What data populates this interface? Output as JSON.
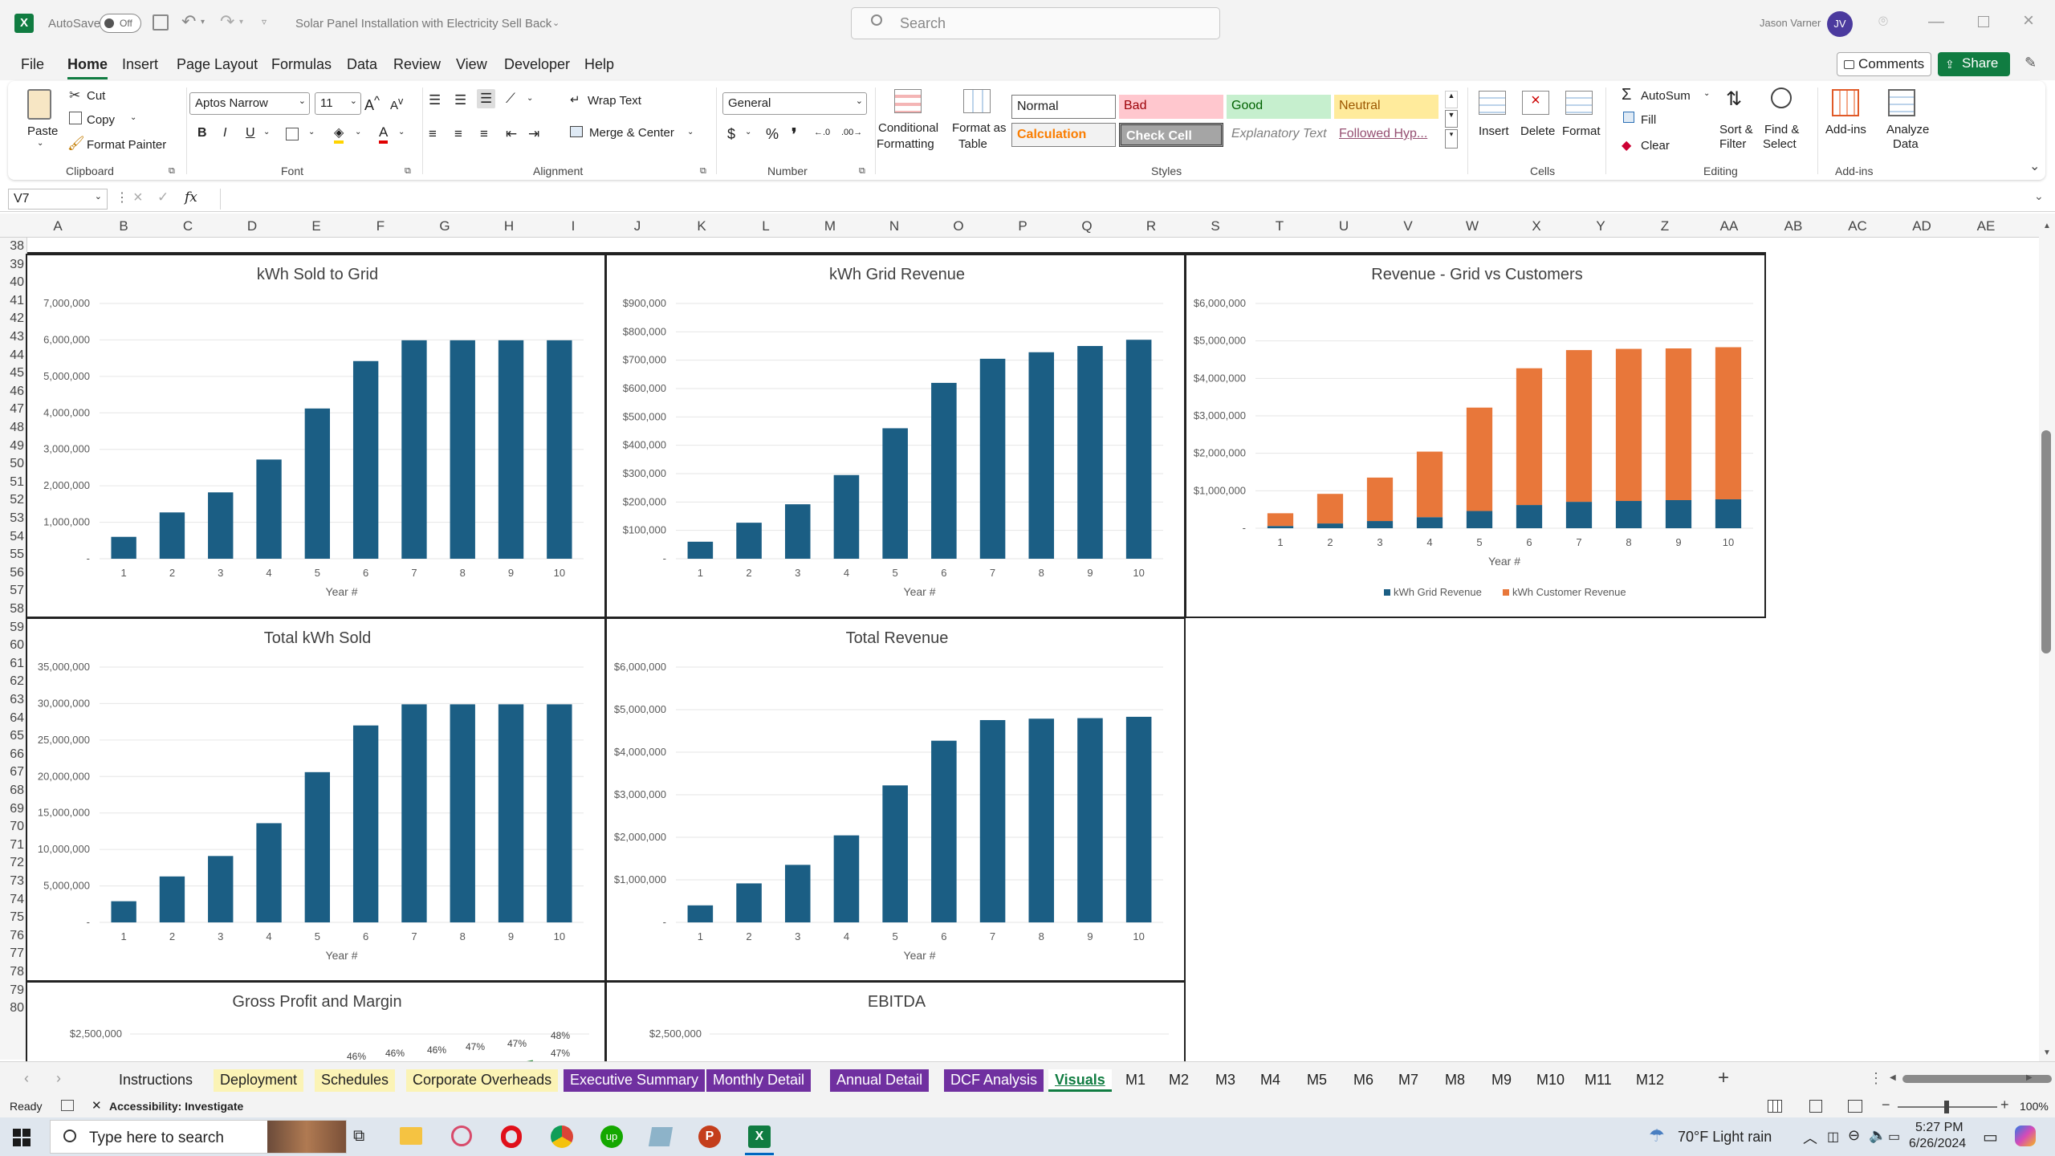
{
  "titlebar": {
    "autosave_label": "AutoSave",
    "autosave_state": "Off",
    "doc_title": "Solar Panel Installation with Electricity Sell Back",
    "search_placeholder": "Search",
    "user_name": "Jason Varner",
    "user_initials": "JV"
  },
  "menu": [
    "File",
    "Home",
    "Insert",
    "Page Layout",
    "Formulas",
    "Data",
    "Review",
    "View",
    "Developer",
    "Help"
  ],
  "menu_right": {
    "comments": "Comments",
    "share": "Share"
  },
  "ribbon": {
    "clipboard": {
      "paste": "Paste",
      "cut": "Cut",
      "copy": "Copy",
      "format_painter": "Format Painter",
      "label": "Clipboard"
    },
    "font": {
      "name": "Aptos Narrow",
      "size": "11",
      "label": "Font"
    },
    "alignment": {
      "wrap": "Wrap Text",
      "merge": "Merge & Center",
      "label": "Alignment"
    },
    "number": {
      "format": "General",
      "label": "Number"
    },
    "styles": {
      "cond": [
        "Conditional",
        "Formatting"
      ],
      "table": [
        "Format as",
        "Table"
      ],
      "cells": [
        "Normal",
        "Bad",
        "Good",
        "Neutral",
        "Calculation",
        "Check Cell",
        "Explanatory Text",
        "Followed Hyp..."
      ],
      "label": "Styles"
    },
    "cells": {
      "insert": "Insert",
      "delete": "Delete",
      "format": "Format",
      "label": "Cells"
    },
    "editing": {
      "autosum": "AutoSum",
      "fill": "Fill",
      "clear": "Clear",
      "sort": [
        "Sort &",
        "Filter"
      ],
      "find": [
        "Find &",
        "Select"
      ],
      "label": "Editing"
    },
    "addins": {
      "addins": "Add-ins",
      "analyze": [
        "Analyze",
        "Data"
      ],
      "label": "Add-ins"
    }
  },
  "formula_bar": {
    "name_box": "V7",
    "fx": "fx",
    "formula": ""
  },
  "columns": [
    "A",
    "B",
    "C",
    "D",
    "E",
    "F",
    "G",
    "H",
    "I",
    "J",
    "K",
    "L",
    "M",
    "N",
    "O",
    "P",
    "Q",
    "R",
    "S",
    "T",
    "U",
    "V",
    "W",
    "X",
    "Y",
    "Z",
    "AA",
    "AB",
    "AC",
    "AD",
    "AE"
  ],
  "rows": [
    "38",
    "39",
    "40",
    "41",
    "42",
    "43",
    "44",
    "45",
    "46",
    "47",
    "48",
    "49",
    "50",
    "51",
    "52",
    "53",
    "54",
    "55",
    "56",
    "57",
    "58",
    "59",
    "60",
    "61",
    "62",
    "63",
    "64",
    "65",
    "66",
    "67",
    "68",
    "69",
    "70",
    "71",
    "72",
    "73",
    "74",
    "75",
    "76",
    "77",
    "78",
    "79",
    "80"
  ],
  "chart_data": [
    {
      "type": "bar",
      "title": "kWh Sold to Grid",
      "xlabel": "Year #",
      "ylabel": "",
      "categories": [
        "1",
        "2",
        "3",
        "4",
        "5",
        "6",
        "7",
        "8",
        "9",
        "10"
      ],
      "values": [
        600000,
        1270000,
        1820000,
        2720000,
        4120000,
        5420000,
        5990000,
        5990000,
        5990000,
        5990000
      ],
      "ylim": [
        0,
        7000000
      ],
      "yticks": [
        "-",
        "1,000,000",
        "2,000,000",
        "3,000,000",
        "4,000,000",
        "5,000,000",
        "6,000,000",
        "7,000,000"
      ],
      "color": "#1b5e84"
    },
    {
      "type": "bar",
      "title": "kWh Grid Revenue",
      "xlabel": "Year #",
      "ylabel": "",
      "categories": [
        "1",
        "2",
        "3",
        "4",
        "5",
        "6",
        "7",
        "8",
        "9",
        "10"
      ],
      "values": [
        60000,
        127000,
        192000,
        295000,
        460000,
        620000,
        705000,
        728000,
        750000,
        772000
      ],
      "ylim": [
        0,
        900000
      ],
      "yticks": [
        "-",
        "$100,000",
        "$200,000",
        "$300,000",
        "$400,000",
        "$500,000",
        "$600,000",
        "$700,000",
        "$800,000",
        "$900,000"
      ],
      "color": "#1b5e84"
    },
    {
      "type": "bar",
      "title": "Revenue - Grid vs Customers",
      "xlabel": "Year #",
      "ylabel": "",
      "categories": [
        "1",
        "2",
        "3",
        "4",
        "5",
        "6",
        "7",
        "8",
        "9",
        "10"
      ],
      "series": [
        {
          "name": "kWh Grid Revenue",
          "values": [
            60000,
            127000,
            192000,
            295000,
            460000,
            620000,
            705000,
            728000,
            750000,
            772000
          ],
          "color": "#1b5e84"
        },
        {
          "name": "kWh Customer Revenue",
          "values": [
            340000,
            790000,
            1160000,
            1750000,
            2760000,
            3650000,
            4050000,
            4060000,
            4050000,
            4060000
          ],
          "color": "#e8773a"
        }
      ],
      "ylim": [
        0,
        6000000
      ],
      "yticks": [
        "-",
        "$1,000,000",
        "$2,000,000",
        "$3,000,000",
        "$4,000,000",
        "$5,000,000",
        "$6,000,000"
      ],
      "legend": "bottom"
    },
    {
      "type": "bar",
      "title": "Total kWh Sold",
      "xlabel": "Year #",
      "ylabel": "",
      "categories": [
        "1",
        "2",
        "3",
        "4",
        "5",
        "6",
        "7",
        "8",
        "9",
        "10"
      ],
      "values": [
        2900000,
        6300000,
        9100000,
        13600000,
        20600000,
        27000000,
        29900000,
        29900000,
        29900000,
        29900000
      ],
      "ylim": [
        0,
        35000000
      ],
      "yticks": [
        "-",
        "5,000,000",
        "10,000,000",
        "15,000,000",
        "20,000,000",
        "25,000,000",
        "30,000,000",
        "35,000,000"
      ],
      "color": "#1b5e84"
    },
    {
      "type": "bar",
      "title": "Total Revenue",
      "xlabel": "Year #",
      "ylabel": "",
      "categories": [
        "1",
        "2",
        "3",
        "4",
        "5",
        "6",
        "7",
        "8",
        "9",
        "10"
      ],
      "values": [
        400000,
        917000,
        1352000,
        2045000,
        3220000,
        4270000,
        4755000,
        4788000,
        4800000,
        4832000
      ],
      "ylim": [
        0,
        6000000
      ],
      "yticks": [
        "-",
        "$1,000,000",
        "$2,000,000",
        "$3,000,000",
        "$4,000,000",
        "$5,000,000",
        "$6,000,000"
      ],
      "color": "#1b5e84"
    },
    {
      "type": "bar",
      "title": "Gross Profit and Margin",
      "ytick_visible": "$2,500,000",
      "margin_labels": [
        "46%",
        "46%",
        "46%",
        "47%",
        "47%",
        "48%",
        "47%"
      ]
    },
    {
      "type": "bar",
      "title": "EBITDA",
      "ytick_visible": "$2,500,000"
    }
  ],
  "sheet_tabs": [
    {
      "label": "Instructions",
      "color": ""
    },
    {
      "label": "Deployment",
      "color": "#fbf3b5"
    },
    {
      "label": "Schedules",
      "color": "#fbf3b5"
    },
    {
      "label": "Corporate Overheads",
      "color": "#fbf3b5"
    },
    {
      "label": "Executive Summary",
      "color": "#7030a0"
    },
    {
      "label": "Monthly Detail",
      "color": "#7030a0"
    },
    {
      "label": "Annual Detail",
      "color": "#7030a0"
    },
    {
      "label": "DCF Analysis",
      "color": "#7030a0"
    },
    {
      "label": "Visuals",
      "color": "active"
    },
    {
      "label": "M1",
      "color": ""
    },
    {
      "label": "M2",
      "color": ""
    },
    {
      "label": "M3",
      "color": ""
    },
    {
      "label": "M4",
      "color": ""
    },
    {
      "label": "M5",
      "color": ""
    },
    {
      "label": "M6",
      "color": ""
    },
    {
      "label": "M7",
      "color": ""
    },
    {
      "label": "M8",
      "color": ""
    },
    {
      "label": "M9",
      "color": ""
    },
    {
      "label": "M10",
      "color": ""
    },
    {
      "label": "M11",
      "color": ""
    },
    {
      "label": "M12",
      "color": ""
    }
  ],
  "status": {
    "ready": "Ready",
    "accessibility": "Accessibility: Investigate",
    "zoom": "100%"
  },
  "taskbar": {
    "search_placeholder": "Type here to search",
    "weather": "70°F  Light rain",
    "time": "5:27 PM",
    "date": "6/26/2024"
  }
}
